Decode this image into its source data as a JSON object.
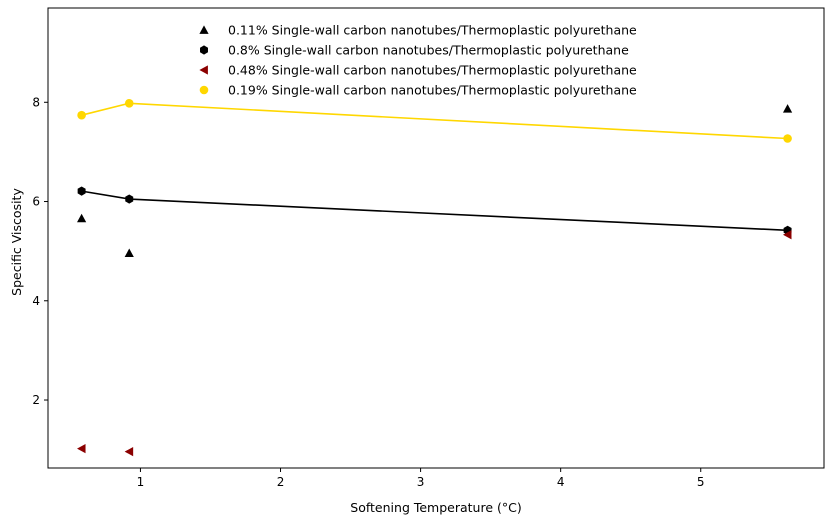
{
  "chart_data": {
    "type": "scatter",
    "title": "",
    "xlabel": "Softening Temperature (°C)",
    "ylabel": "Specific Viscosity",
    "xlim": [
      0.34,
      5.88
    ],
    "ylim": [
      0.63,
      9.9
    ],
    "xticks": [
      1,
      2,
      3,
      4,
      5
    ],
    "yticks": [
      2,
      4,
      6,
      8
    ],
    "grid": false,
    "legend_position": "top",
    "series": [
      {
        "name": "0.11% Single-wall carbon nanotubes/Thermoplastic polyurethane",
        "marker": "triangle-up",
        "color": "#000000",
        "line": false,
        "x": [
          0.58,
          0.92,
          5.62
        ],
        "y": [
          5.66,
          4.96,
          7.87
        ]
      },
      {
        "name": "0.8% Single-wall carbon nanotubes/Thermoplastic polyurethane",
        "marker": "hexagon",
        "color": "#000000",
        "line": true,
        "x": [
          0.58,
          0.92,
          5.62
        ],
        "y": [
          6.21,
          6.05,
          5.42
        ]
      },
      {
        "name": "0.48% Single-wall carbon nanotubes/Thermoplastic polyurethane",
        "marker": "triangle-left",
        "color": "#8b0000",
        "line": false,
        "x": [
          0.58,
          0.92,
          5.62
        ],
        "y": [
          1.02,
          0.96,
          5.33
        ]
      },
      {
        "name": "0.19% Single-wall carbon nanotubes/Thermoplastic polyurethane",
        "marker": "circle",
        "color": "#ffd700",
        "line": true,
        "x": [
          0.58,
          0.92,
          5.62
        ],
        "y": [
          7.74,
          7.98,
          7.27
        ]
      }
    ]
  }
}
